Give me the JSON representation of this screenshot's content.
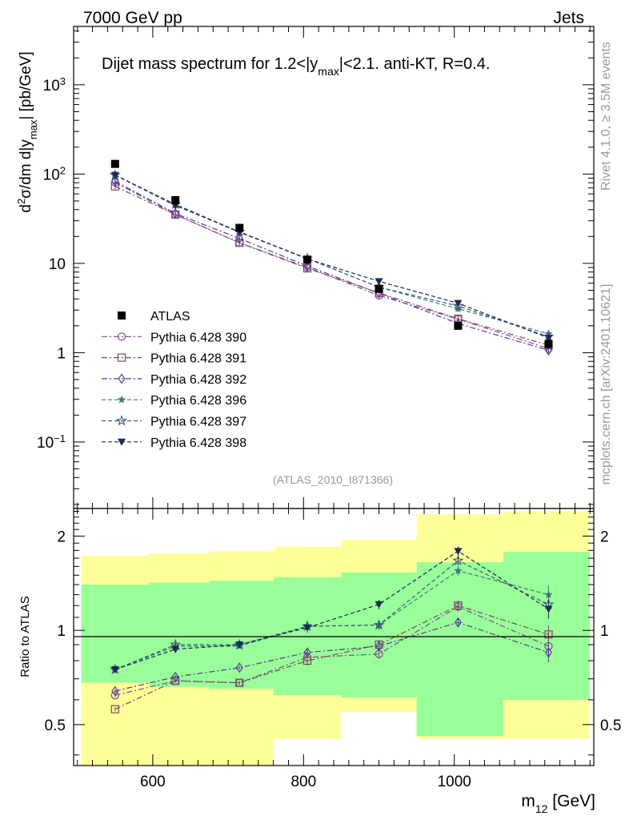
{
  "header": {
    "left": "7000 GeV pp",
    "right": "Jets"
  },
  "side": {
    "rivet": "Rivet 4.1.0, ≥ 3.5M events",
    "mcplots": "mcplots.cern.ch [arXiv:2401.10621]"
  },
  "chart_data": {
    "type": "scatter",
    "title": "Dijet mass spectrum for 1.2<|y_max|<2.1.  anti-KT, R=0.4.",
    "title_parts": {
      "before": "Dijet mass spectrum for 1.2<|y",
      "sub": "max",
      "after": "|<2.1.  anti-KT, R=0.4."
    },
    "analysis_tag": "(ATLAS_2010_I871366)",
    "xlabel": "m12 [GeV]",
    "xlabel_parts": {
      "main": "m",
      "sub": "12",
      "unit": " [GeV]"
    },
    "ylabel": "d2σ/dm d|ymax| [pb/GeV]",
    "ylabel_parts": {
      "d": "d",
      "sup": "2",
      "mid": "σ/dm d|y",
      "sub": "max",
      "end": "| [pb/GeV]"
    },
    "ratio_ylabel": "Ratio to ATLAS",
    "xlim": [
      495,
      1185
    ],
    "ylim": [
      0.018,
      4500
    ],
    "ratio_ylim": [
      0.37,
      2.45
    ],
    "x_ticks": [
      "600",
      "800",
      "1000"
    ],
    "y_ticks": [
      "10−1",
      "1",
      "10",
      "102",
      "103"
    ],
    "ratio_ticks": [
      "0.5",
      "1",
      "2"
    ],
    "x": [
      550,
      630,
      715,
      805,
      900,
      1005,
      1125
    ],
    "band_edges": [
      505,
      595,
      675,
      760,
      850,
      950,
      1065,
      1180
    ],
    "data": {
      "name": "ATLAS",
      "values": [
        130,
        51,
        25,
        11,
        5.2,
        2.0,
        1.25
      ],
      "yellow_band": [
        [
          0.32,
          1.73
        ],
        [
          0.34,
          1.76
        ],
        [
          0.37,
          1.79
        ],
        [
          0.45,
          1.85
        ],
        [
          0.55,
          1.95
        ],
        [
          0.45,
          2.35
        ],
        [
          0.45,
          2.4
        ]
      ],
      "green_band": [
        [
          0.68,
          1.4
        ],
        [
          0.66,
          1.42
        ],
        [
          0.65,
          1.44
        ],
        [
          0.62,
          1.48
        ],
        [
          0.61,
          1.53
        ],
        [
          0.46,
          1.65
        ],
        [
          0.6,
          1.78
        ]
      ]
    },
    "series": [
      {
        "name": "Pythia 6.428 390",
        "color": "#7a4c8c",
        "marker": "circle-open",
        "ratio": [
          0.62,
          0.69,
          0.68,
          0.82,
          0.84,
          1.19,
          0.89
        ]
      },
      {
        "name": "Pythia 6.428 391",
        "color": "#7d4a5e",
        "marker": "square-open",
        "ratio": [
          0.56,
          0.69,
          0.68,
          0.8,
          0.9,
          1.2,
          0.97
        ]
      },
      {
        "name": "Pythia 6.428 392",
        "color": "#5a3a9a",
        "marker": "diamond-open",
        "ratio": [
          0.64,
          0.71,
          0.76,
          0.85,
          0.89,
          1.06,
          0.85
        ]
      },
      {
        "name": "Pythia 6.428 396",
        "color": "#3f7a7a",
        "marker": "star-filled",
        "ratio": [
          0.75,
          0.89,
          0.89,
          1.03,
          1.04,
          1.55,
          1.3
        ]
      },
      {
        "name": "Pythia 6.428 397",
        "color": "#3f5a7a",
        "marker": "star-open",
        "ratio": [
          0.75,
          0.9,
          0.9,
          1.03,
          1.04,
          1.67,
          1.21
        ]
      },
      {
        "name": "Pythia 6.428 398",
        "color": "#1b2a52",
        "marker": "triangle-down-filled",
        "ratio": [
          0.75,
          0.87,
          0.9,
          1.02,
          1.21,
          1.79,
          1.17
        ]
      }
    ]
  }
}
